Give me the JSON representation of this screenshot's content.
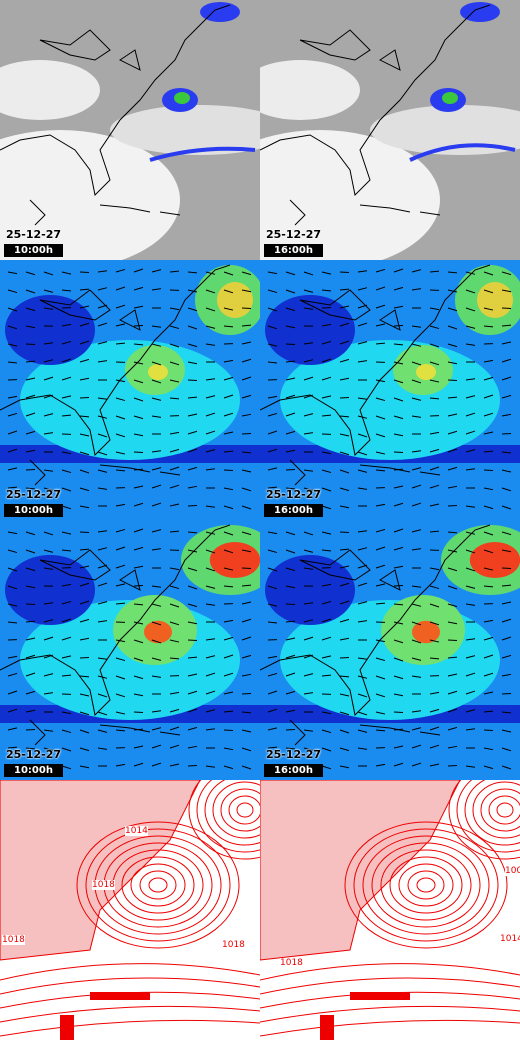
{
  "rows": [
    [
      {
        "date": "25-12-27",
        "time": "10:00h"
      },
      {
        "date": "25-12-27",
        "time": "16:00h"
      }
    ],
    [
      {
        "date": "25-12-27",
        "time": "10:00h"
      },
      {
        "date": "25-12-27",
        "time": "16:00h"
      }
    ],
    [
      {
        "date": "25-12-27",
        "time": "10:00h"
      },
      {
        "date": "25-12-27",
        "time": "16:00h"
      }
    ],
    [
      {
        "isobars": [
          "1018",
          "1014",
          "1018",
          "1018"
        ]
      },
      {
        "isobars": [
          "1018",
          "1014",
          "100"
        ]
      }
    ]
  ]
}
